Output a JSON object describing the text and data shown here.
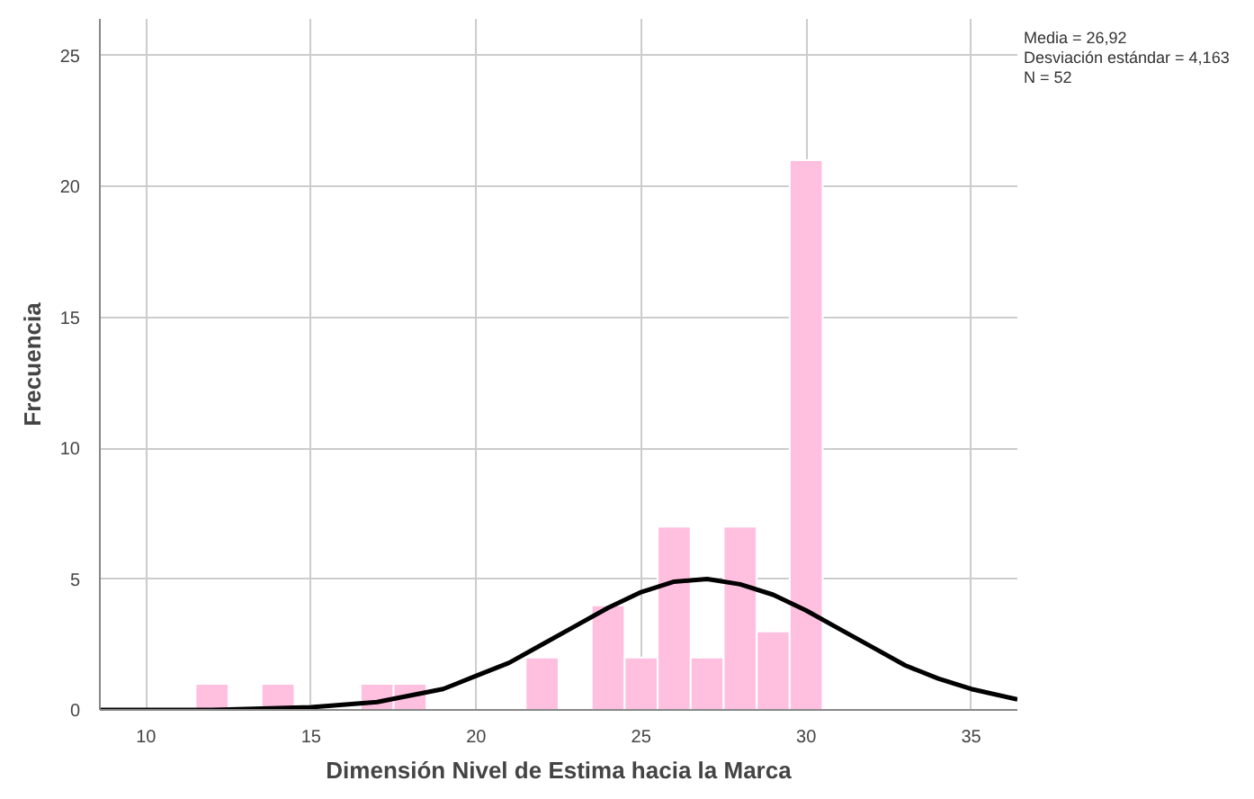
{
  "chart_data": {
    "type": "histogram",
    "xlabel": "Dimensión Nivel de Estima hacia la Marca",
    "ylabel": "Frecuencia",
    "bins": [
      11.5,
      12.5,
      13.5,
      14.5,
      15.5,
      16.5,
      17.5,
      18.5,
      19.5,
      20.5,
      21.5,
      22.5,
      23.5,
      24.5,
      25.5,
      26.5,
      27.5,
      28.5,
      29.5,
      30.5
    ],
    "values": [
      1,
      0,
      1,
      0,
      0,
      1,
      1,
      0,
      0,
      0,
      2,
      0,
      4,
      2,
      7,
      2,
      7,
      3,
      21
    ],
    "color": "#ffc0e0",
    "series": [
      {
        "type": "line",
        "color": "#000000",
        "x": [
          8.6,
          12,
          15,
          17,
          19,
          20,
          21,
          22,
          23,
          24,
          25,
          26,
          27,
          28,
          29,
          30,
          31,
          32,
          33,
          34,
          35,
          36.4
        ],
        "values": [
          0.0,
          0.0,
          0.1,
          0.3,
          0.8,
          1.3,
          1.8,
          2.5,
          3.2,
          3.9,
          4.5,
          4.9,
          5.0,
          4.8,
          4.4,
          3.8,
          3.1,
          2.4,
          1.7,
          1.2,
          0.8,
          0.4
        ]
      }
    ],
    "xlim": [
      8.6,
      36.4
    ],
    "ylim": [
      0,
      26.4
    ],
    "xticks": [
      10,
      15,
      20,
      25,
      30,
      35
    ],
    "yticks": [
      0,
      5,
      10,
      15,
      20,
      25
    ],
    "grid": true,
    "annotations": [
      "Media = 26,92",
      "Desviación estándar = 4,163",
      "N = 52"
    ]
  }
}
